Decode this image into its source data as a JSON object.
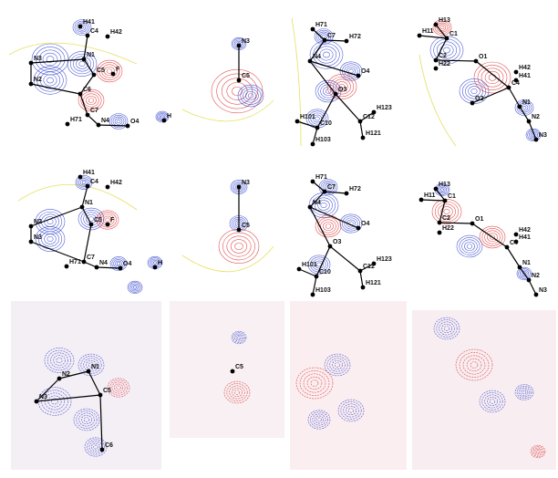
{
  "panels": [
    {
      "labels": [
        "H41",
        "C4",
        "H42",
        "N3",
        "N1",
        "C5",
        "F",
        "N2",
        "C6",
        "C7",
        "N4",
        "O4",
        "H71",
        "H"
      ]
    },
    {
      "labels": [
        "N3",
        "C5"
      ]
    },
    {
      "labels": [
        "H71",
        "C7",
        "H72",
        "N4",
        "O4",
        "O3",
        "C12",
        "H123",
        "H101",
        "C10",
        "H121",
        "H103"
      ]
    },
    {
      "labels": [
        "H13",
        "H11",
        "C1",
        "C2",
        "O1",
        "H22",
        "H42",
        "H41",
        "C4",
        "O2",
        "N1",
        "N2",
        "N3"
      ]
    },
    {
      "labels": [
        "H41",
        "C4",
        "H42",
        "N1",
        "N2",
        "C5",
        "F",
        "N3",
        "H71",
        "C7",
        "N4",
        "O4",
        "H"
      ]
    },
    {
      "labels": [
        "N3",
        "C5"
      ]
    },
    {
      "labels": [
        "H71",
        "C7",
        "H72",
        "N4",
        "O4",
        "O3",
        "H123",
        "C12",
        "H101",
        "C10",
        "H121",
        "H103"
      ]
    },
    {
      "labels": [
        "H13",
        "H11",
        "C1",
        "C2",
        "O1",
        "H22",
        "H42",
        "H41",
        "C4",
        "N1",
        "N2",
        "N3"
      ]
    },
    {
      "labels": [
        "N1",
        "N2",
        "C5",
        "N3",
        "C6"
      ]
    },
    {
      "labels": [
        "C5"
      ]
    }
  ]
}
